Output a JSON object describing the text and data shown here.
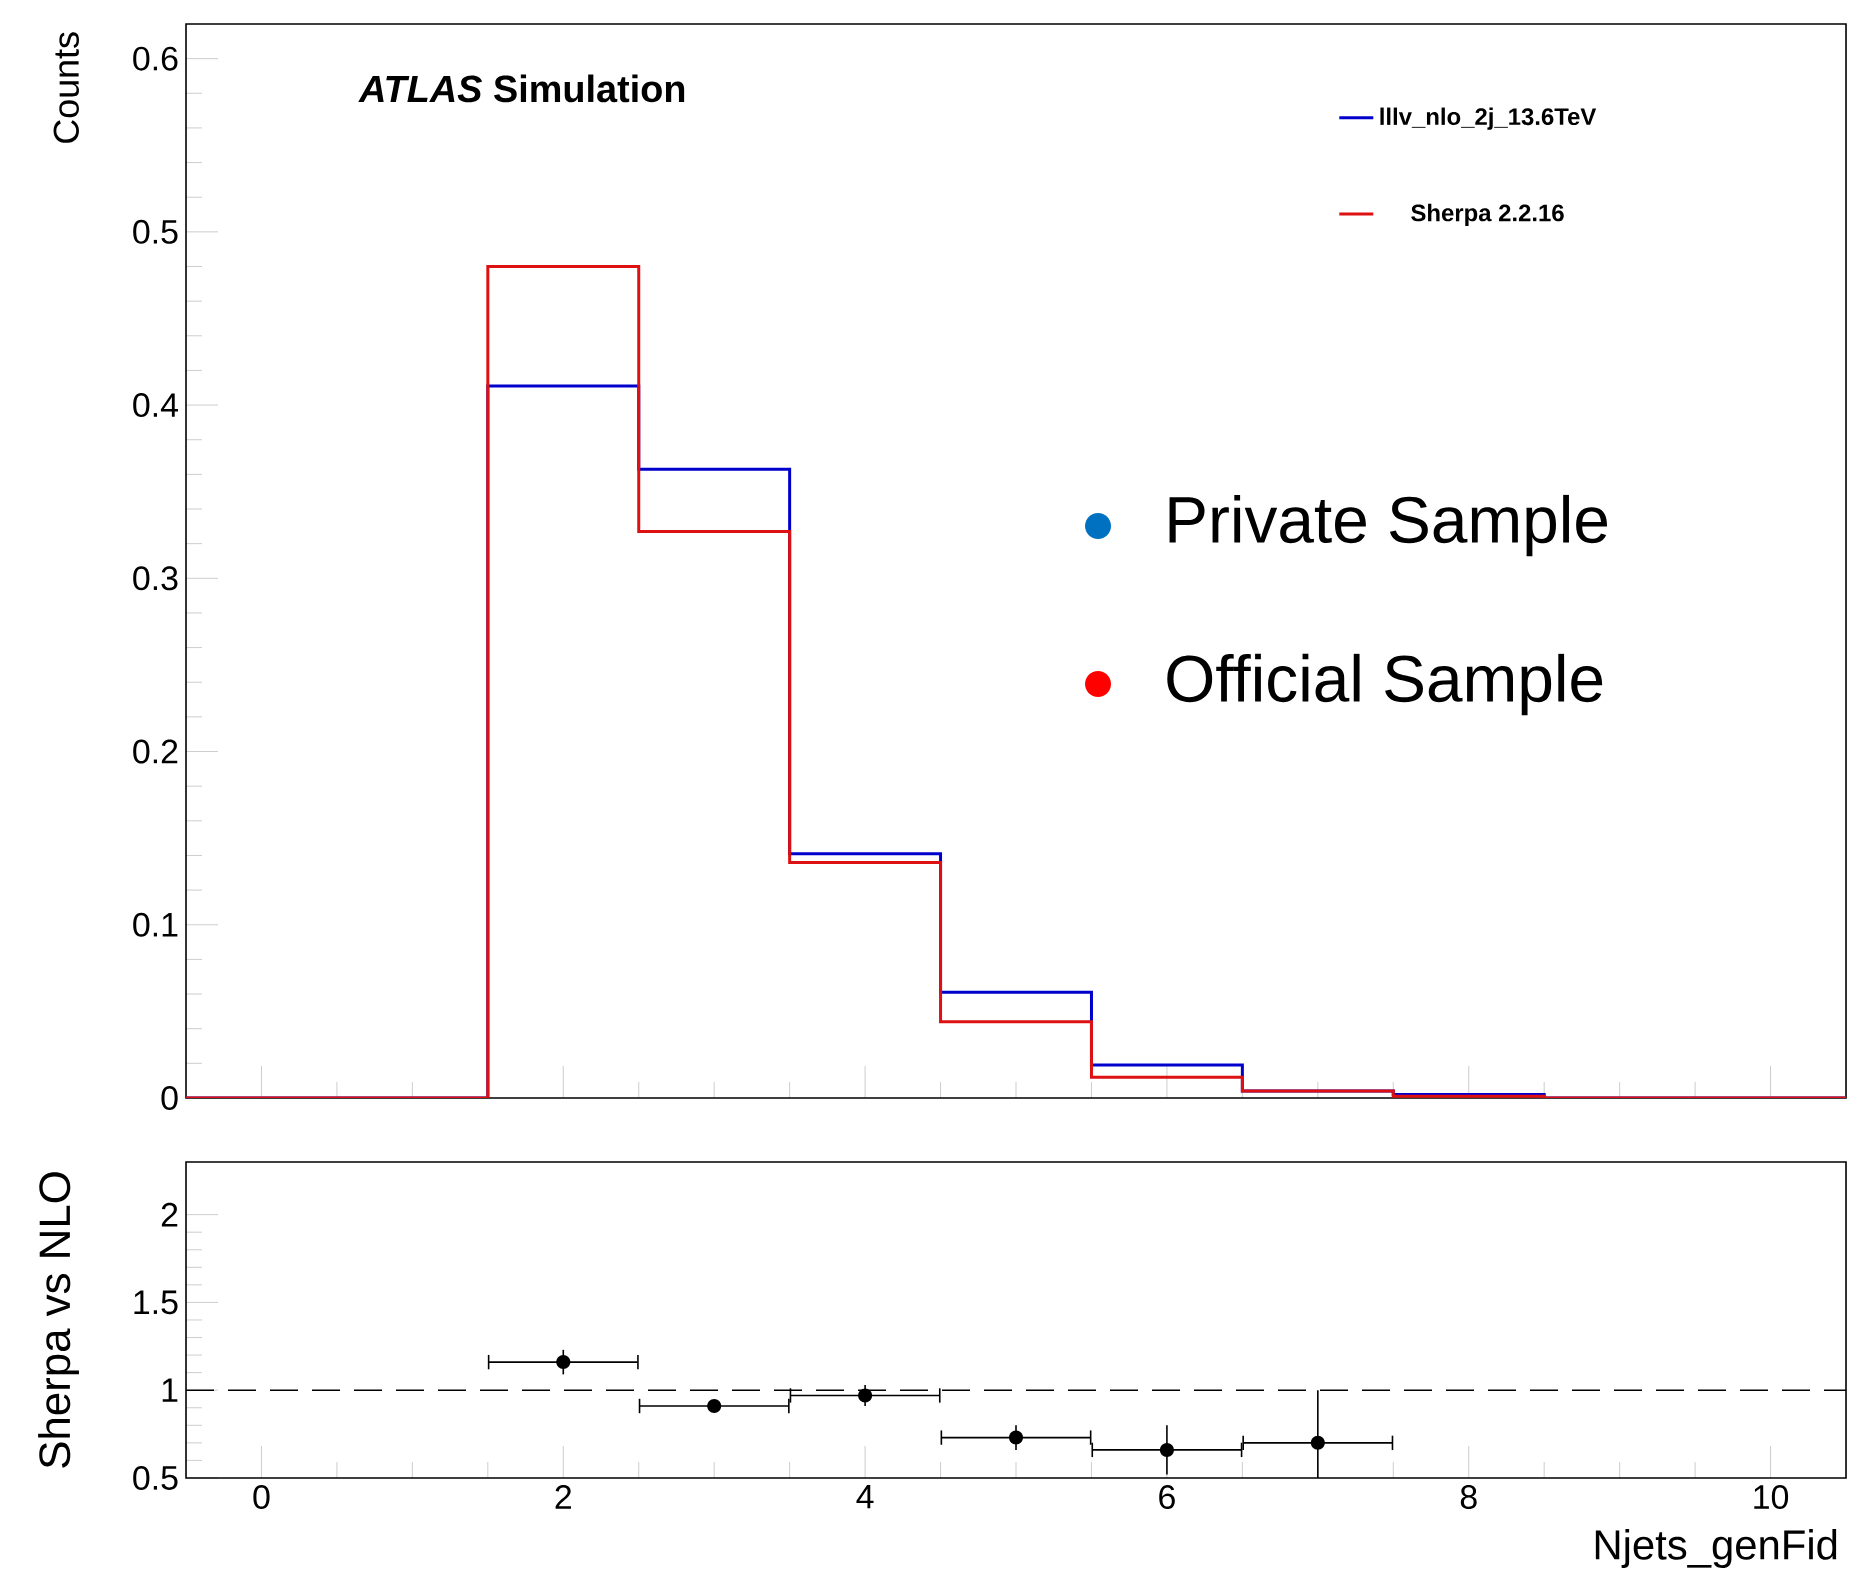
{
  "chart_data": [
    {
      "type": "histogram",
      "title": "*ATLAS* Simulation",
      "ylabel": "Counts",
      "bins": [
        -0.5,
        0.5,
        1.5,
        2.5,
        3.5,
        4.5,
        5.5,
        6.5,
        7.5,
        8.5,
        9.5,
        10.5
      ],
      "series": [
        {
          "name": "lllv_nlo_2j_13.6TeV",
          "color": "#0000cc",
          "values": [
            0,
            0,
            0.411,
            0.363,
            0.141,
            0.061,
            0.019,
            0.004,
            0.002,
            0,
            0
          ]
        },
        {
          "name": "Sherpa 2.2.16",
          "color": "#dd1111",
          "values": [
            0,
            0,
            0.48,
            0.327,
            0.136,
            0.044,
            0.012,
            0.004,
            0.001,
            0,
            0
          ]
        }
      ],
      "xlim": [
        -0.5,
        10.5
      ],
      "xticks": [
        {
          "value": 0,
          "label": null
        },
        {
          "value": 2,
          "label": null
        },
        {
          "value": 4,
          "label": null
        },
        {
          "value": 6,
          "label": null
        },
        {
          "value": 8,
          "label": null
        },
        {
          "value": 10,
          "label": null
        }
      ],
      "ylim": [
        0,
        0.62
      ],
      "yticks": [
        0,
        0.1,
        0.2,
        0.3,
        0.4,
        0.5,
        0.6
      ],
      "tick_labels": "y",
      "legend": "top right",
      "grid": false,
      "annotations": [
        "Private Sample",
        "Official Sample"
      ]
    },
    {
      "type": "scatter",
      "xlabel": "Njets_genFid",
      "ylabel": "Sherpa vs NLO",
      "x": [
        2,
        3,
        4,
        5,
        6,
        7
      ],
      "values": [
        1.16,
        0.91,
        0.97,
        0.73,
        0.66,
        0.7
      ],
      "errors": [
        [
          1.09,
          1.23
        ],
        [
          0.88,
          0.94
        ],
        [
          0.91,
          1.03
        ],
        [
          0.66,
          0.8
        ],
        [
          0.52,
          0.8
        ],
        [
          0.5,
          1.0
        ]
      ],
      "xerrors": [
        0.5,
        0.5,
        0.5,
        0.5,
        0.5,
        0.5
      ],
      "color": "#000000",
      "marker": "circle",
      "xlim": [
        -0.5,
        10.5
      ],
      "xticks": [
        0,
        2,
        4,
        6,
        8,
        10
      ],
      "ylim": [
        0.5,
        2.3
      ],
      "yticks": [
        0.5,
        1,
        1.5,
        2
      ],
      "grid": false,
      "ref_lines": [
        {
          "axis": "y",
          "value": 1,
          "line_style": "dashed",
          "color": "#000000"
        }
      ]
    }
  ]
}
